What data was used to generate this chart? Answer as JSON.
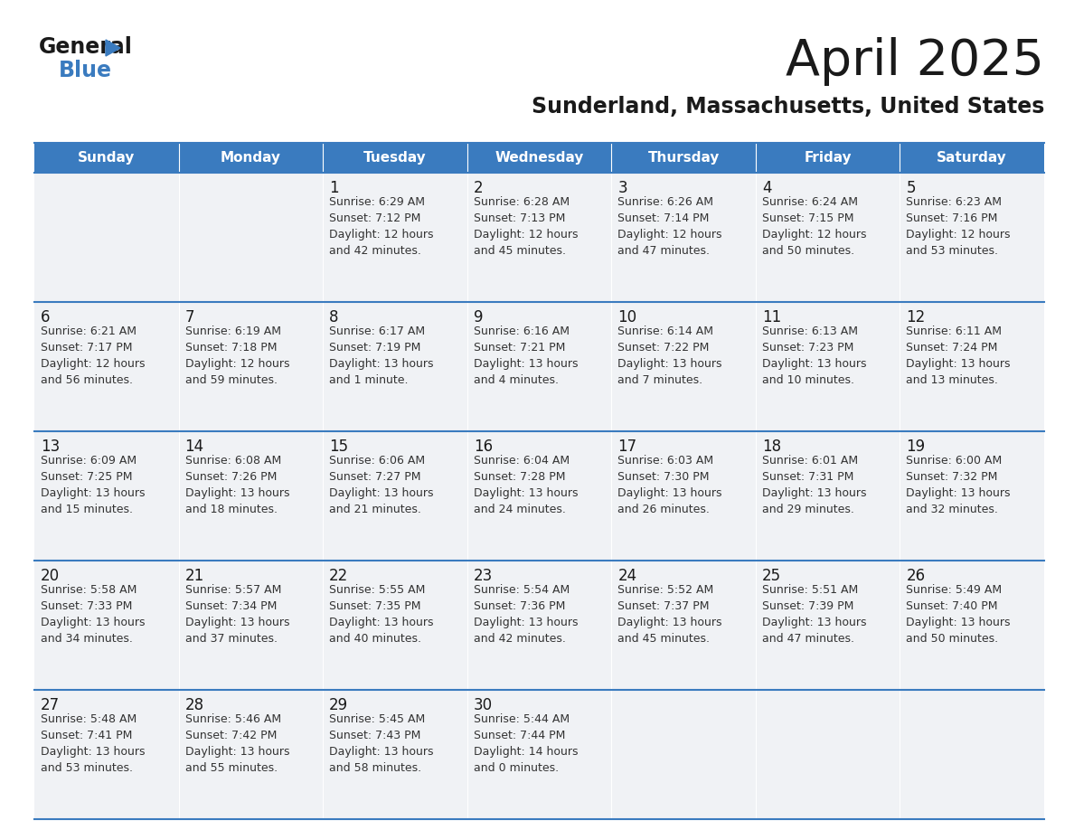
{
  "title": "April 2025",
  "subtitle": "Sunderland, Massachusetts, United States",
  "header_bg_color": "#3a7bbf",
  "header_text_color": "#ffffff",
  "cell_bg_color": "#f0f2f5",
  "title_color": "#1a1a1a",
  "day_number_color": "#1a1a1a",
  "info_color": "#333333",
  "line_color": "#3a7bbf",
  "day_names": [
    "Sunday",
    "Monday",
    "Tuesday",
    "Wednesday",
    "Thursday",
    "Friday",
    "Saturday"
  ],
  "calendar": [
    [
      {
        "day": "",
        "info": ""
      },
      {
        "day": "",
        "info": ""
      },
      {
        "day": "1",
        "info": "Sunrise: 6:29 AM\nSunset: 7:12 PM\nDaylight: 12 hours\nand 42 minutes."
      },
      {
        "day": "2",
        "info": "Sunrise: 6:28 AM\nSunset: 7:13 PM\nDaylight: 12 hours\nand 45 minutes."
      },
      {
        "day": "3",
        "info": "Sunrise: 6:26 AM\nSunset: 7:14 PM\nDaylight: 12 hours\nand 47 minutes."
      },
      {
        "day": "4",
        "info": "Sunrise: 6:24 AM\nSunset: 7:15 PM\nDaylight: 12 hours\nand 50 minutes."
      },
      {
        "day": "5",
        "info": "Sunrise: 6:23 AM\nSunset: 7:16 PM\nDaylight: 12 hours\nand 53 minutes."
      }
    ],
    [
      {
        "day": "6",
        "info": "Sunrise: 6:21 AM\nSunset: 7:17 PM\nDaylight: 12 hours\nand 56 minutes."
      },
      {
        "day": "7",
        "info": "Sunrise: 6:19 AM\nSunset: 7:18 PM\nDaylight: 12 hours\nand 59 minutes."
      },
      {
        "day": "8",
        "info": "Sunrise: 6:17 AM\nSunset: 7:19 PM\nDaylight: 13 hours\nand 1 minute."
      },
      {
        "day": "9",
        "info": "Sunrise: 6:16 AM\nSunset: 7:21 PM\nDaylight: 13 hours\nand 4 minutes."
      },
      {
        "day": "10",
        "info": "Sunrise: 6:14 AM\nSunset: 7:22 PM\nDaylight: 13 hours\nand 7 minutes."
      },
      {
        "day": "11",
        "info": "Sunrise: 6:13 AM\nSunset: 7:23 PM\nDaylight: 13 hours\nand 10 minutes."
      },
      {
        "day": "12",
        "info": "Sunrise: 6:11 AM\nSunset: 7:24 PM\nDaylight: 13 hours\nand 13 minutes."
      }
    ],
    [
      {
        "day": "13",
        "info": "Sunrise: 6:09 AM\nSunset: 7:25 PM\nDaylight: 13 hours\nand 15 minutes."
      },
      {
        "day": "14",
        "info": "Sunrise: 6:08 AM\nSunset: 7:26 PM\nDaylight: 13 hours\nand 18 minutes."
      },
      {
        "day": "15",
        "info": "Sunrise: 6:06 AM\nSunset: 7:27 PM\nDaylight: 13 hours\nand 21 minutes."
      },
      {
        "day": "16",
        "info": "Sunrise: 6:04 AM\nSunset: 7:28 PM\nDaylight: 13 hours\nand 24 minutes."
      },
      {
        "day": "17",
        "info": "Sunrise: 6:03 AM\nSunset: 7:30 PM\nDaylight: 13 hours\nand 26 minutes."
      },
      {
        "day": "18",
        "info": "Sunrise: 6:01 AM\nSunset: 7:31 PM\nDaylight: 13 hours\nand 29 minutes."
      },
      {
        "day": "19",
        "info": "Sunrise: 6:00 AM\nSunset: 7:32 PM\nDaylight: 13 hours\nand 32 minutes."
      }
    ],
    [
      {
        "day": "20",
        "info": "Sunrise: 5:58 AM\nSunset: 7:33 PM\nDaylight: 13 hours\nand 34 minutes."
      },
      {
        "day": "21",
        "info": "Sunrise: 5:57 AM\nSunset: 7:34 PM\nDaylight: 13 hours\nand 37 minutes."
      },
      {
        "day": "22",
        "info": "Sunrise: 5:55 AM\nSunset: 7:35 PM\nDaylight: 13 hours\nand 40 minutes."
      },
      {
        "day": "23",
        "info": "Sunrise: 5:54 AM\nSunset: 7:36 PM\nDaylight: 13 hours\nand 42 minutes."
      },
      {
        "day": "24",
        "info": "Sunrise: 5:52 AM\nSunset: 7:37 PM\nDaylight: 13 hours\nand 45 minutes."
      },
      {
        "day": "25",
        "info": "Sunrise: 5:51 AM\nSunset: 7:39 PM\nDaylight: 13 hours\nand 47 minutes."
      },
      {
        "day": "26",
        "info": "Sunrise: 5:49 AM\nSunset: 7:40 PM\nDaylight: 13 hours\nand 50 minutes."
      }
    ],
    [
      {
        "day": "27",
        "info": "Sunrise: 5:48 AM\nSunset: 7:41 PM\nDaylight: 13 hours\nand 53 minutes."
      },
      {
        "day": "28",
        "info": "Sunrise: 5:46 AM\nSunset: 7:42 PM\nDaylight: 13 hours\nand 55 minutes."
      },
      {
        "day": "29",
        "info": "Sunrise: 5:45 AM\nSunset: 7:43 PM\nDaylight: 13 hours\nand 58 minutes."
      },
      {
        "day": "30",
        "info": "Sunrise: 5:44 AM\nSunset: 7:44 PM\nDaylight: 14 hours\nand 0 minutes."
      },
      {
        "day": "",
        "info": ""
      },
      {
        "day": "",
        "info": ""
      },
      {
        "day": "",
        "info": ""
      }
    ]
  ],
  "logo_text1": "General",
  "logo_text2": "Blue",
  "logo_triangle_color": "#3a7bbf",
  "logo_text1_color": "#1a1a1a",
  "fig_width": 11.88,
  "fig_height": 9.18,
  "dpi": 100
}
